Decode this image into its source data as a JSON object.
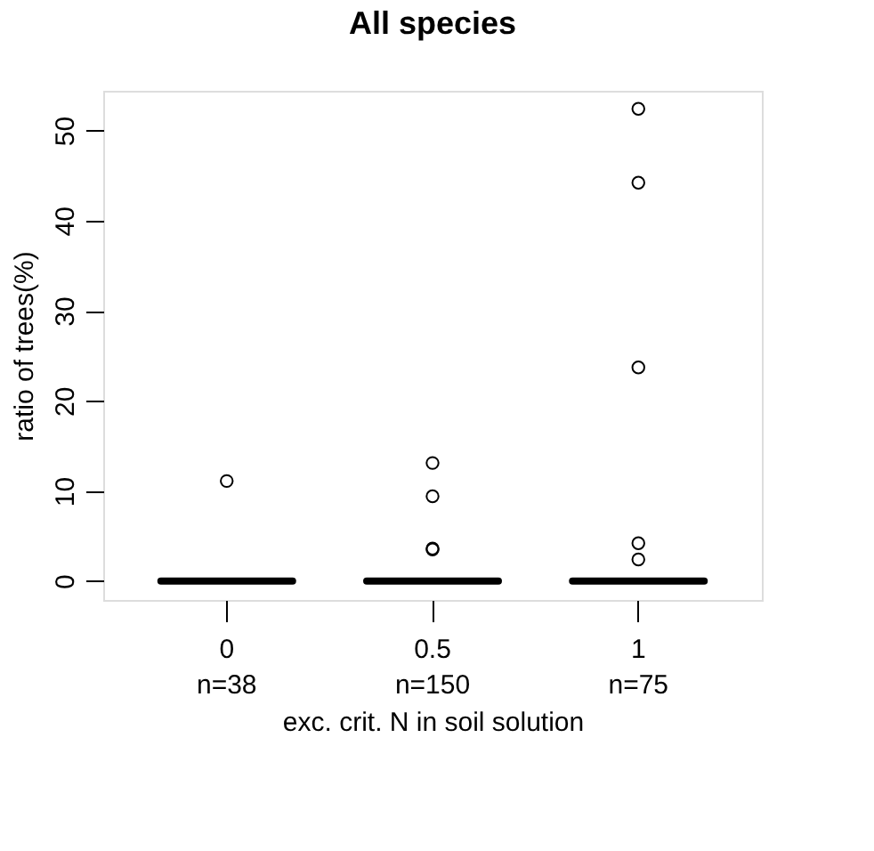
{
  "chart_data": {
    "type": "box",
    "title": "All species",
    "xlabel": "exc. crit. N in soil solution",
    "ylabel": "ratio of trees(%)",
    "categories": [
      "0\nn=38",
      "0.5\nn=150",
      "1\nn=75"
    ],
    "boxes": [
      {
        "low": 0,
        "q1": 0,
        "median": 0,
        "q3": 0,
        "high": 0,
        "outliers": [
          11.1
        ]
      },
      {
        "low": 0,
        "q1": 0,
        "median": 0,
        "q3": 0,
        "high": 0,
        "outliers": [
          13.1,
          9.4,
          3.6,
          3.5
        ]
      },
      {
        "low": 0,
        "q1": 0,
        "median": 0,
        "q3": 0,
        "high": 0,
        "outliers": [
          52.4,
          44.2,
          23.7,
          4.2,
          2.4
        ]
      }
    ],
    "ylim": [
      -2.1,
      54.4
    ],
    "yticks": [
      0,
      10,
      20,
      30,
      40,
      50
    ]
  }
}
